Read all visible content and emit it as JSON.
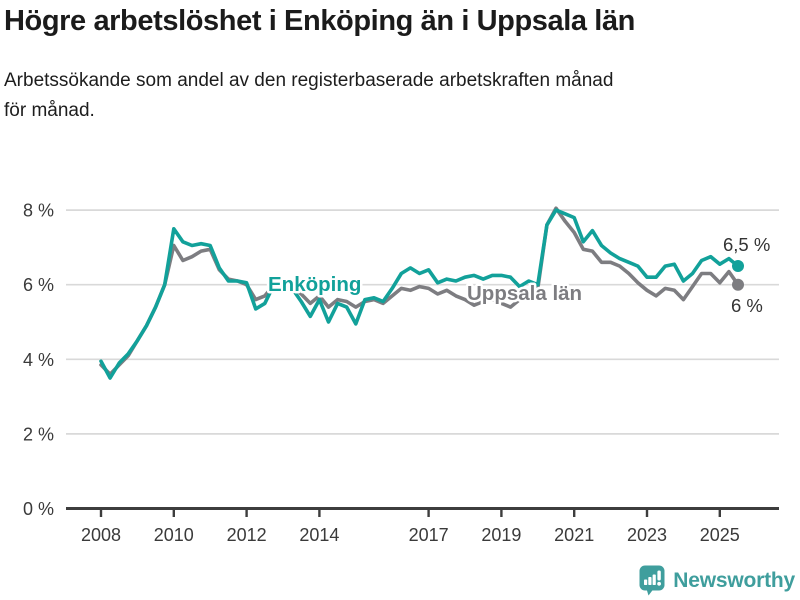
{
  "header": {
    "title": "Högre arbetslöshet i Enköping än i Uppsala län",
    "subtitle": "Arbetssökande som andel av den registerbaserade arbetskraften månad\nför månad."
  },
  "branding": {
    "name": "Newsworthy",
    "icon": "newsworthy-speech-bubble-barchart-icon",
    "color": "#3f9e9d"
  },
  "colors": {
    "enkoping_line": "#12a19a",
    "uppsala_line": "#7d7d81",
    "grid": "#d9d9d9",
    "axis": "#3d3d3d",
    "tick_text": "#3a3a3a",
    "end_label_text": "#333333",
    "title_text": "#1b1b1b",
    "background": "#ffffff"
  },
  "chart_data": {
    "type": "line",
    "title": "Högre arbetslöshet i Enköping än i Uppsala län",
    "subtitle": "Arbetssökande som andel av den registerbaserade arbetskraften månad för månad.",
    "xlabel": "",
    "ylabel": "",
    "ylim": [
      0,
      8
    ],
    "xlim": [
      2008,
      2025.5
    ],
    "grid": true,
    "legend_position": "inline-labels",
    "x_start": 2008,
    "x_step": 0.25,
    "yticks": [
      {
        "value": 0,
        "label": "0 %"
      },
      {
        "value": 2,
        "label": "2 %"
      },
      {
        "value": 4,
        "label": "4 %"
      },
      {
        "value": 6,
        "label": "6 %"
      },
      {
        "value": 8,
        "label": "8 %"
      }
    ],
    "xticks": [
      {
        "value": 2008,
        "label": "2008"
      },
      {
        "value": 2010,
        "label": "2010"
      },
      {
        "value": 2012,
        "label": "2012"
      },
      {
        "value": 2014,
        "label": "2014"
      },
      {
        "value": 2017,
        "label": "2017"
      },
      {
        "value": 2019,
        "label": "2019"
      },
      {
        "value": 2021,
        "label": "2021"
      },
      {
        "value": 2023,
        "label": "2023"
      },
      {
        "value": 2025,
        "label": "2025"
      }
    ],
    "series": [
      {
        "name": "Enköping",
        "color": "#12a19a",
        "end_label": "6,5 %",
        "last_value": 6.5,
        "values": [
          3.95,
          3.5,
          3.9,
          4.15,
          4.5,
          4.9,
          5.4,
          6.0,
          7.5,
          7.15,
          7.05,
          7.1,
          7.05,
          6.45,
          6.1,
          6.1,
          6.05,
          5.35,
          5.5,
          6.0,
          6.1,
          5.9,
          5.55,
          5.15,
          5.6,
          5.0,
          5.5,
          5.4,
          4.95,
          5.6,
          5.65,
          5.55,
          5.9,
          6.3,
          6.45,
          6.3,
          6.4,
          6.05,
          6.15,
          6.1,
          6.2,
          6.25,
          6.15,
          6.25,
          6.25,
          6.2,
          5.95,
          6.1,
          6.0,
          7.6,
          8.0,
          7.9,
          7.8,
          7.15,
          7.45,
          7.05,
          6.85,
          6.7,
          6.6,
          6.5,
          6.2,
          6.2,
          6.5,
          6.55,
          6.1,
          6.3,
          6.65,
          6.75,
          6.55,
          6.7,
          6.5
        ]
      },
      {
        "name": "Uppsala län",
        "color": "#7d7d81",
        "end_label": "6 %",
        "last_value": 6.0,
        "values": [
          3.85,
          3.6,
          3.85,
          4.1,
          4.5,
          4.9,
          5.4,
          6.0,
          7.05,
          6.65,
          6.75,
          6.9,
          6.95,
          6.4,
          6.15,
          6.1,
          6.0,
          5.6,
          5.7,
          6.0,
          6.1,
          5.95,
          5.75,
          5.5,
          5.7,
          5.4,
          5.6,
          5.55,
          5.4,
          5.55,
          5.6,
          5.5,
          5.7,
          5.9,
          5.85,
          5.95,
          5.9,
          5.75,
          5.85,
          5.7,
          5.6,
          5.45,
          5.55,
          5.6,
          5.5,
          5.4,
          5.6,
          5.8,
          5.9,
          7.6,
          8.05,
          7.7,
          7.4,
          6.95,
          6.9,
          6.6,
          6.6,
          6.5,
          6.3,
          6.05,
          5.85,
          5.7,
          5.9,
          5.85,
          5.6,
          5.95,
          6.3,
          6.3,
          6.05,
          6.35,
          6.0
        ]
      }
    ]
  }
}
